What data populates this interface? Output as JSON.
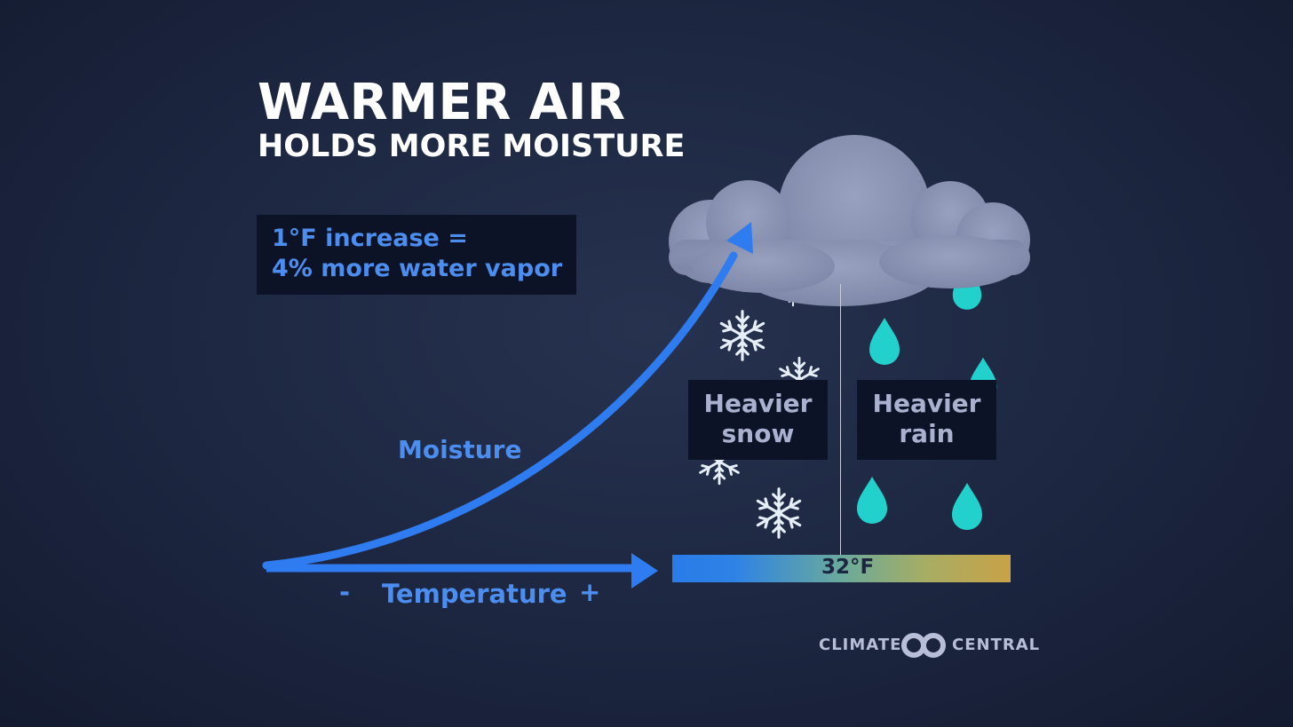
{
  "title": {
    "main": "WARMER AIR",
    "sub": "HOLDS MORE MOISTURE"
  },
  "info": {
    "line1": "1°F increase =",
    "line2": "4% more water vapor"
  },
  "axes": {
    "moisture_label": "Moisture",
    "temperature_label": "Temperature",
    "minus": "-",
    "plus": "+"
  },
  "precip": {
    "snow_line1": "Heavier",
    "snow_line2": "snow",
    "rain_line1": "Heavier",
    "rain_line2": "rain"
  },
  "scale": {
    "freezing_label": "32°F",
    "color_cold": "#2a7be8",
    "color_warm": "#c8a247"
  },
  "logo": {
    "left_word": "CLIMATE",
    "right_word": "CENTRAL"
  },
  "colors": {
    "arrow_blue": "#2f7cf0",
    "cloud": "#8e97b6",
    "raindrop": "#22d1cc",
    "snowflake": "#e6eef7"
  },
  "icons": [
    "cloud-icon",
    "snowflake-icon",
    "raindrop-icon",
    "curved-arrow-icon",
    "logo-mark-icon"
  ]
}
